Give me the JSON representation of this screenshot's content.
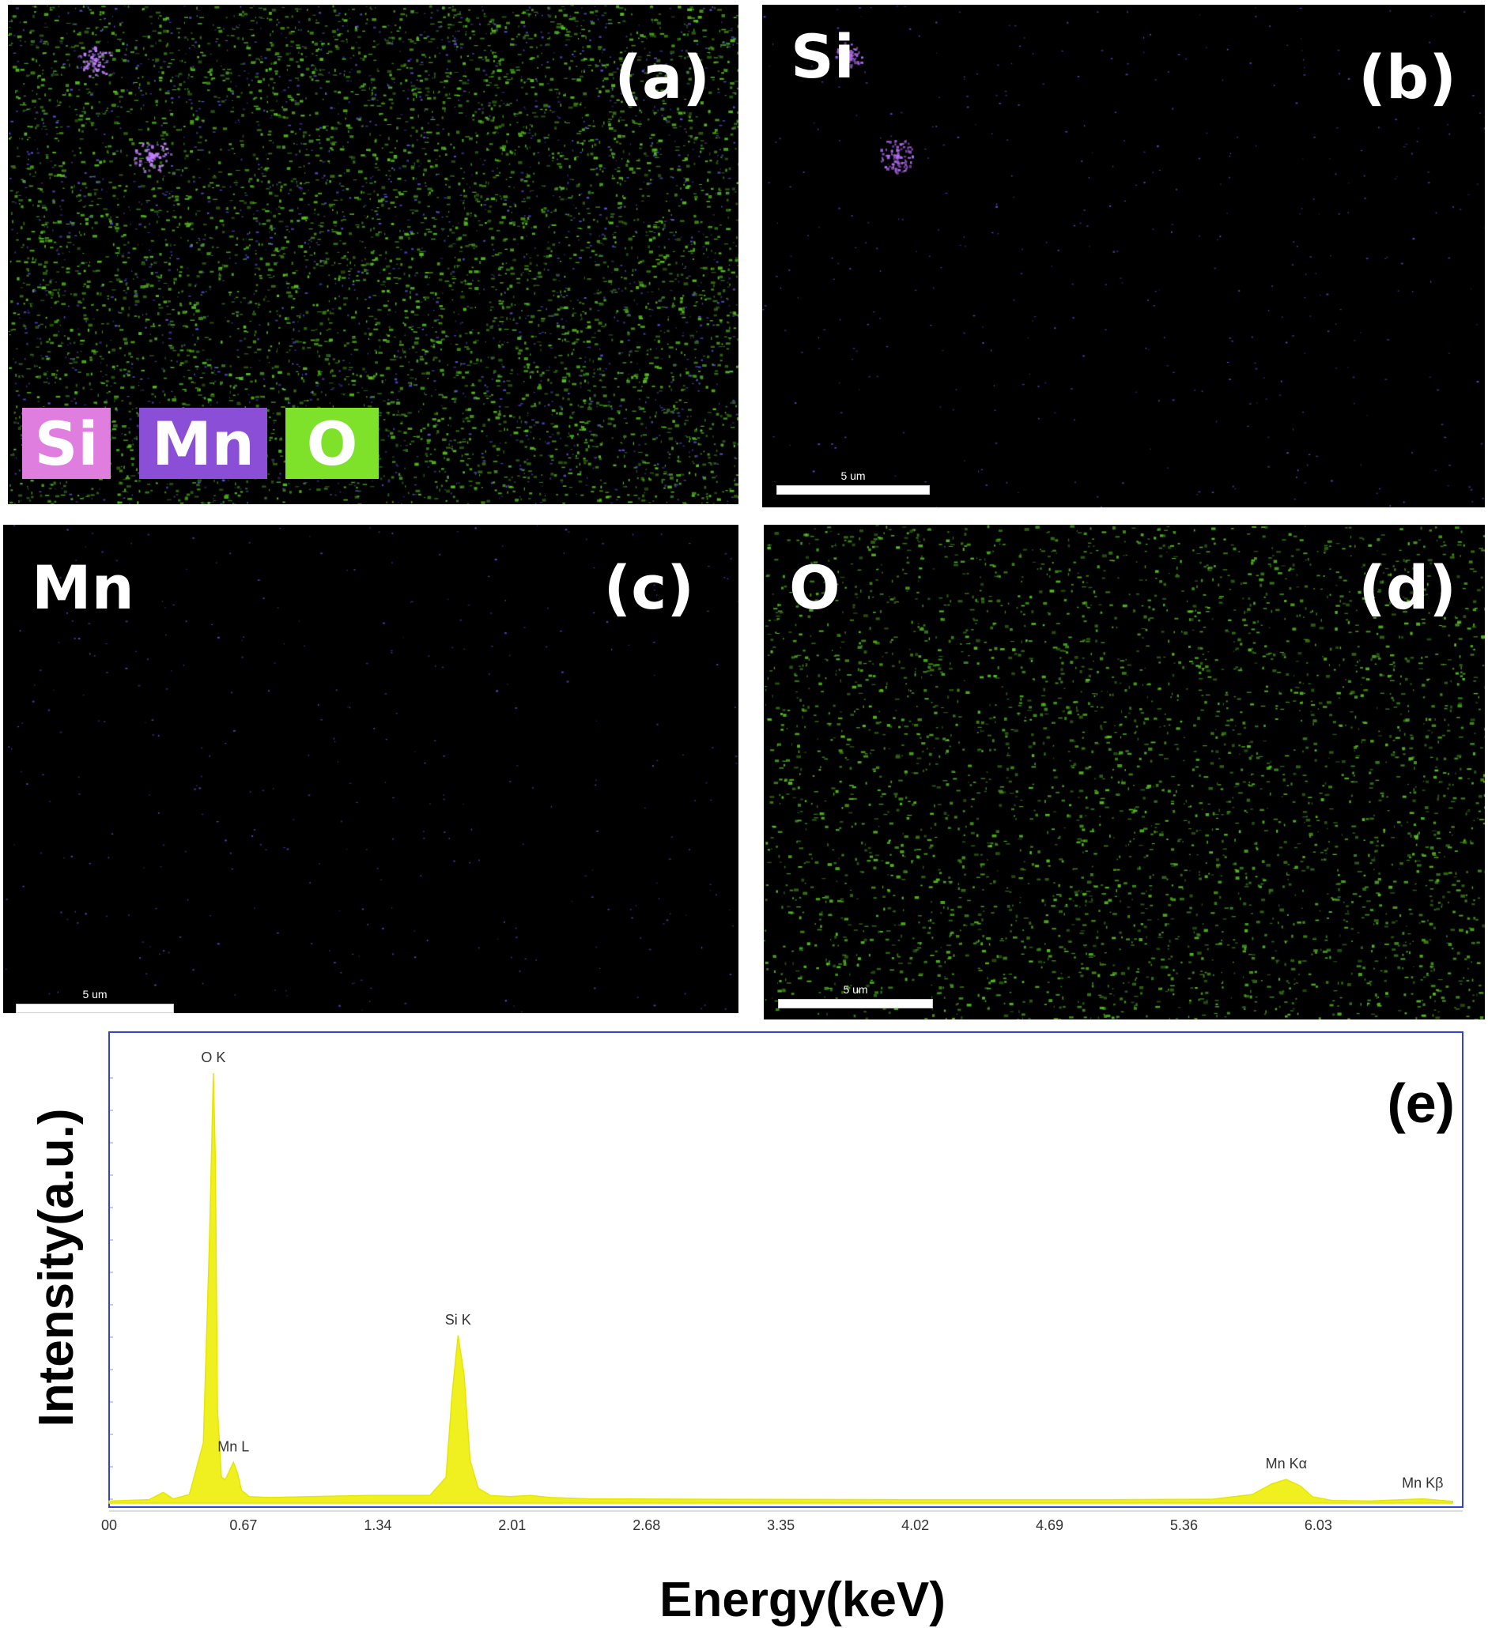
{
  "panels": {
    "a": {
      "tag": "(a)",
      "legend": [
        {
          "label": "Si",
          "color": "#e07ee0"
        },
        {
          "label": "Mn",
          "color": "#8a4fd6"
        },
        {
          "label": "O",
          "color": "#7ee22a"
        }
      ]
    },
    "b": {
      "tag": "(b)",
      "element": "Si",
      "scale_label": "5 um"
    },
    "c": {
      "tag": "(c)",
      "element": "Mn",
      "scale_label": "5 um"
    },
    "d": {
      "tag": "(d)",
      "element": "O",
      "scale_label": "5 um"
    }
  },
  "colors": {
    "si": "#b06cf0",
    "mn": "#5a50e0",
    "o": "#58c41e",
    "spectrum": "#f0f020",
    "frame": "#3344cc"
  },
  "chart_data": {
    "type": "area",
    "panel_tag": "(e)",
    "xlabel": "Energy(keV)",
    "ylabel": "Intensity(a.u.)",
    "xlim": [
      0.0,
      6.75
    ],
    "ylim": [
      0,
      100
    ],
    "x_ticks": [
      "00",
      "0.67",
      "1.34",
      "2.01",
      "2.68",
      "3.35",
      "4.02",
      "4.69",
      "5.36",
      "6.03"
    ],
    "x_tick_values": [
      0.0,
      0.67,
      1.34,
      2.01,
      2.68,
      3.35,
      4.02,
      4.69,
      5.36,
      6.03
    ],
    "x": [
      0.0,
      0.2,
      0.27,
      0.32,
      0.4,
      0.47,
      0.5,
      0.52,
      0.53,
      0.54,
      0.56,
      0.58,
      0.6,
      0.62,
      0.64,
      0.66,
      0.7,
      0.8,
      1.0,
      1.3,
      1.6,
      1.68,
      1.71,
      1.74,
      1.77,
      1.8,
      1.84,
      1.9,
      2.0,
      2.1,
      2.2,
      2.4,
      3.0,
      4.0,
      5.0,
      5.5,
      5.7,
      5.8,
      5.87,
      5.94,
      6.0,
      6.1,
      6.3,
      6.45,
      6.55,
      6.7
    ],
    "y": [
      0.5,
      0.8,
      2.5,
      1.0,
      2.0,
      14.0,
      60.0,
      100.0,
      80.0,
      22.0,
      6.0,
      5.5,
      7.5,
      9.5,
      7.0,
      3.0,
      1.5,
      1.3,
      1.5,
      1.8,
      1.8,
      6.0,
      25.0,
      39.0,
      30.0,
      10.0,
      3.5,
      1.8,
      1.5,
      1.8,
      1.3,
      1.0,
      0.9,
      0.8,
      0.8,
      0.9,
      2.0,
      4.5,
      5.5,
      4.0,
      1.5,
      0.6,
      0.5,
      0.8,
      1.0,
      0.4
    ],
    "annotations": [
      {
        "text": "O  K",
        "x": 0.52,
        "y": 100
      },
      {
        "text": "Mn L",
        "x": 0.62,
        "y": 9.5
      },
      {
        "text": "Si K",
        "x": 1.74,
        "y": 39
      },
      {
        "text": "Mn Kα",
        "x": 5.87,
        "y": 5.5
      },
      {
        "text": "Mn Kβ",
        "x": 6.55,
        "y": 1.0
      }
    ]
  }
}
